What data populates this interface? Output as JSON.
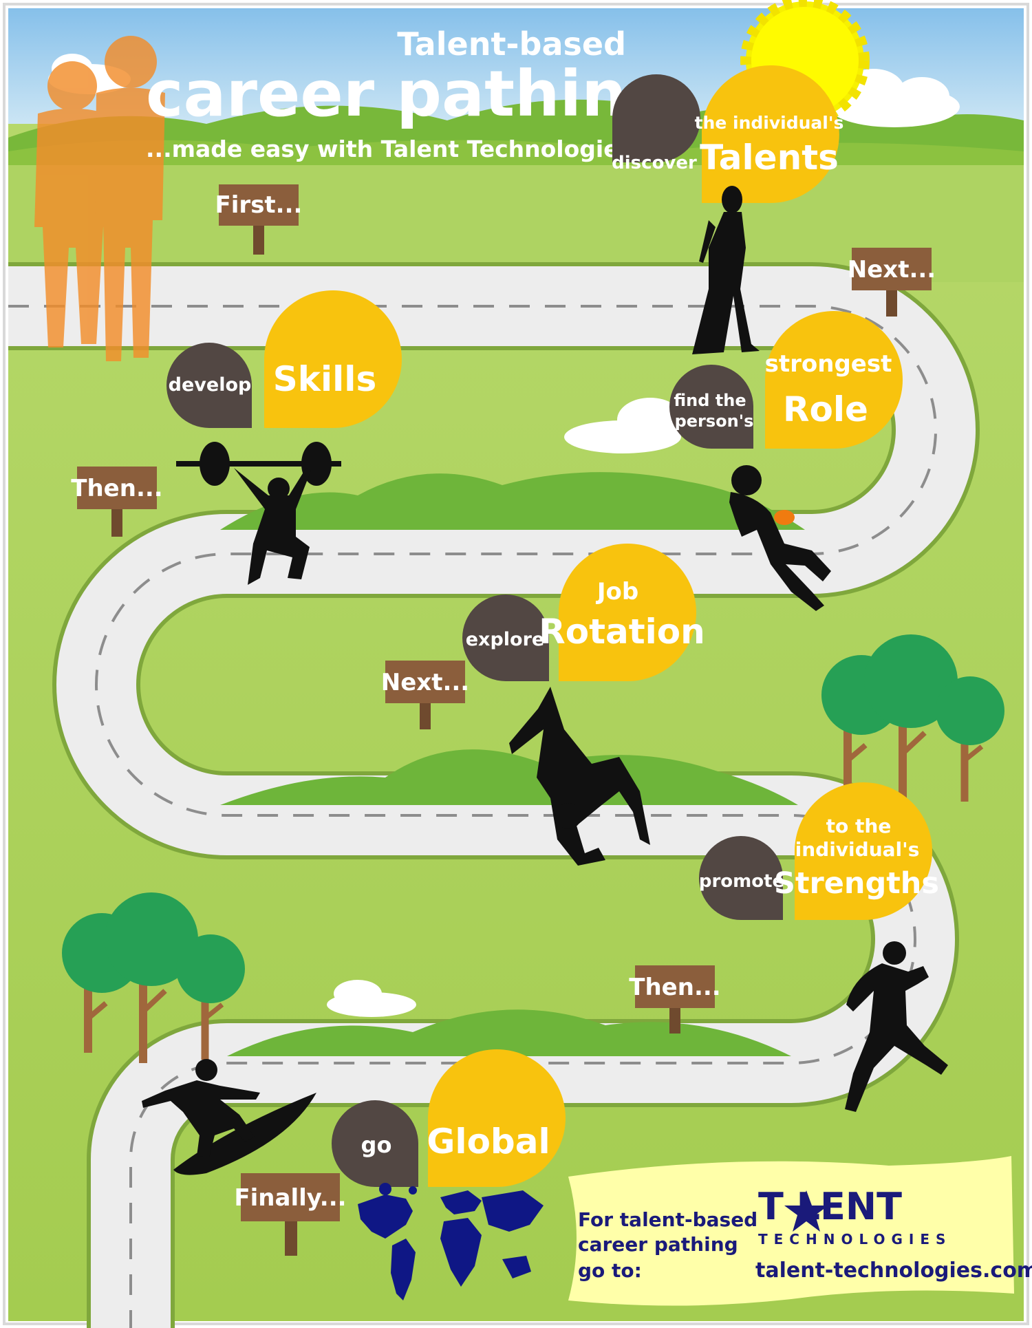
{
  "header": {
    "title_top": "Talent-based",
    "title_main": "career pathing",
    "subtitle": "...made easy with Talent Technologies"
  },
  "steps": [
    {
      "sign": "First...",
      "verb": "discover",
      "lead": "the individual's",
      "key": "Talents"
    },
    {
      "sign": "Next...",
      "verb_line1": "find the",
      "verb_line2": "person's",
      "lead": "strongest",
      "key": "Role"
    },
    {
      "sign": "Then...",
      "verb": "develop",
      "key": "Skills"
    },
    {
      "sign": "Next...",
      "verb": "explore",
      "lead": "Job",
      "key": "Rotation"
    },
    {
      "sign": "Then...",
      "verb": "promote",
      "lead_line1": "to the",
      "lead_line2": "individual's",
      "key": "Strengths"
    },
    {
      "sign": "Finally...",
      "verb": "go",
      "key": "Global"
    }
  ],
  "footer": {
    "cta_line1": "For talent-based",
    "cta_line2": "career pathing",
    "cta_line3": "go to:",
    "logo_word": "T LENT",
    "logo_sub": "TECHNOLOGIES",
    "url": "talent-technologies.com"
  },
  "colors": {
    "sky": "#a9d4ef",
    "grass": "#a8cf55",
    "road": "#ededed",
    "bubble_yellow": "#f8c30e",
    "bubble_brown": "#524743",
    "sign_brown": "#8b5e3c",
    "navy": "#1a1a7a",
    "note_yellow": "#ffffa9"
  },
  "icons": [
    "sun-icon",
    "couple-silhouette-icon",
    "woman-silhouette-icon",
    "football-player-icon",
    "weightlifter-icon",
    "gymnast-icon",
    "running-man-icon",
    "surfer-icon",
    "world-map-icon",
    "tree-icon",
    "cloud-icon",
    "star-icon"
  ]
}
